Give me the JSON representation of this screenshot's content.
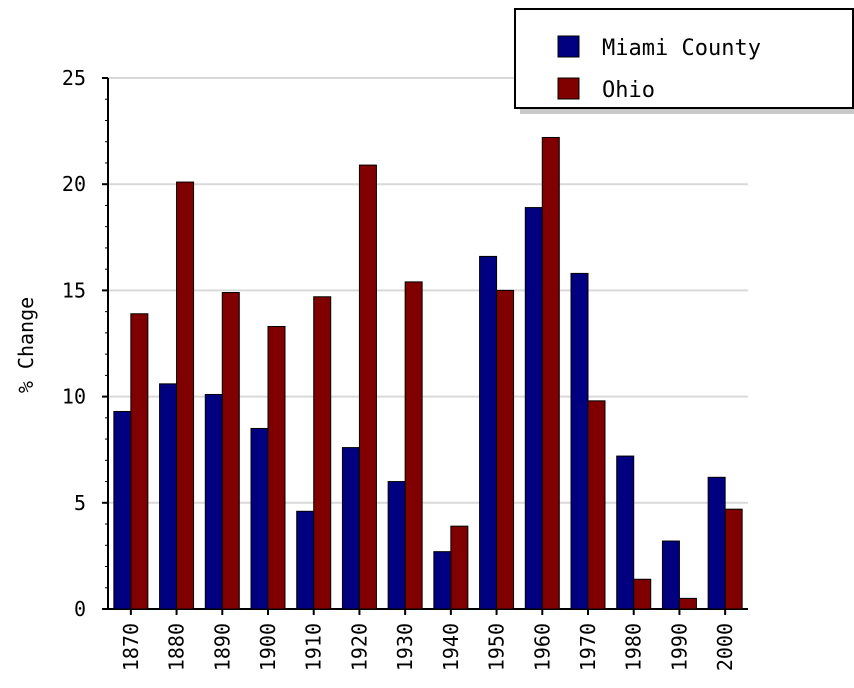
{
  "chart_data": {
    "type": "bar",
    "title": "",
    "xlabel": "",
    "ylabel": "% Change",
    "ylim": [
      0,
      25
    ],
    "yticks": [
      0,
      5,
      10,
      15,
      20,
      25
    ],
    "grid": true,
    "legend_position": "top-right",
    "categories": [
      "1870",
      "1880",
      "1890",
      "1900",
      "1910",
      "1920",
      "1930",
      "1940",
      "1950",
      "1960",
      "1970",
      "1980",
      "1990",
      "2000"
    ],
    "series": [
      {
        "name": "Miami County",
        "color": "#000080",
        "values": [
          9.3,
          10.6,
          10.1,
          8.5,
          4.6,
          7.6,
          6.0,
          2.7,
          16.6,
          18.9,
          15.8,
          7.2,
          3.2,
          6.2
        ]
      },
      {
        "name": "Ohio",
        "color": "#800000",
        "values": [
          13.9,
          20.1,
          14.9,
          13.3,
          14.7,
          20.9,
          15.4,
          3.9,
          15.0,
          22.2,
          9.8,
          1.4,
          0.5,
          4.7
        ]
      }
    ]
  }
}
